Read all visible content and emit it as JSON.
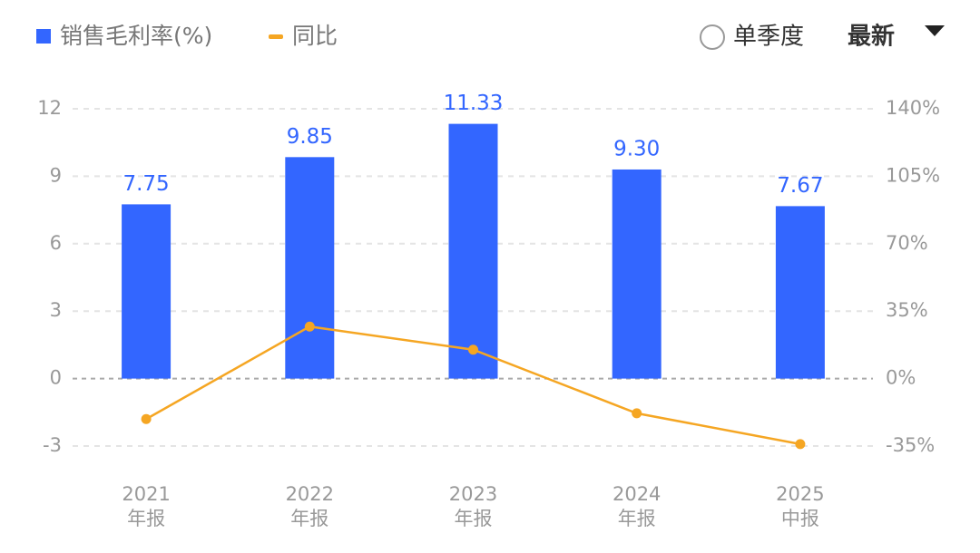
{
  "chart_data": {
    "type": "bar_line",
    "categories": [
      [
        "2021",
        "年报"
      ],
      [
        "2022",
        "年报"
      ],
      [
        "2023",
        "年报"
      ],
      [
        "2024",
        "年报"
      ],
      [
        "2025",
        "中报"
      ]
    ],
    "series": [
      {
        "name": "销售毛利率(%)",
        "type": "bar",
        "color": "#3366ff",
        "values": [
          7.75,
          9.85,
          11.33,
          9.3,
          7.67
        ],
        "value_labels": [
          "7.75",
          "9.85",
          "11.33",
          "9.30",
          "7.67"
        ]
      },
      {
        "name": "同比",
        "type": "line",
        "axis": "y2",
        "color": "#f5a623",
        "values": [
          -21,
          27,
          15,
          -18,
          -34
        ]
      }
    ],
    "ylim": [
      -3,
      12
    ],
    "yticks": [
      -3,
      0,
      3,
      6,
      9,
      12
    ],
    "y2lim": [
      -35,
      140
    ],
    "y2ticks": [
      {
        "value": -35,
        "label": "-35%"
      },
      {
        "value": 0,
        "label": "0%"
      },
      {
        "value": 35,
        "label": "35%"
      },
      {
        "value": 70,
        "label": "70%"
      },
      {
        "value": 105,
        "label": "105%"
      },
      {
        "value": 140,
        "label": "140%"
      }
    ],
    "grid": true,
    "controls": {
      "radio_label": "单季度",
      "dropdown_label": "最新"
    }
  }
}
